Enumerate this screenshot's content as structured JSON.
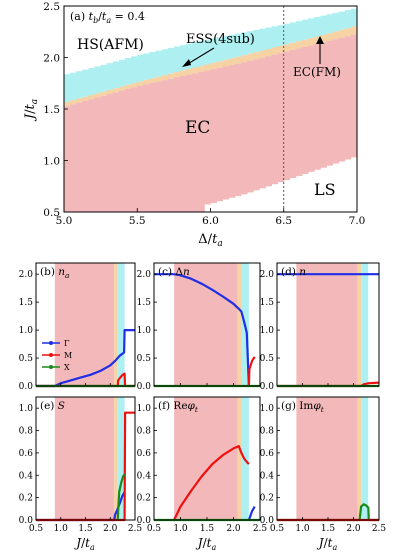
{
  "chart_data": [
    {
      "type": "heatmap",
      "panel": "(a)",
      "title": "(a) t_b/t_a = 0.4",
      "xlabel": "Δ/t_a",
      "ylabel": "J/t_a",
      "xlim": [
        5.0,
        7.0
      ],
      "ylim": [
        0.5,
        2.5
      ],
      "xticks": [
        "5.0",
        "5.5",
        "6.0",
        "6.5",
        "7.0"
      ],
      "yticks": [
        "0.5",
        "1.0",
        "1.5",
        "2.0",
        "2.5"
      ],
      "dashed_vline_x": 6.5,
      "regions": [
        {
          "name": "HS(AFM)",
          "color": "#ffffff"
        },
        {
          "name": "ESS(4sub)",
          "color": "#aef0f2"
        },
        {
          "name": "EC(FM)",
          "color": "#f6d2a4"
        },
        {
          "name": "EC",
          "color": "#f2b8ba"
        },
        {
          "name": "LS",
          "color": "#ffffff"
        }
      ],
      "boundaries": {
        "x": [
          5.0,
          5.25,
          5.5,
          5.75,
          6.0,
          6.25,
          6.5,
          6.75,
          7.0
        ],
        "hs_ess": [
          1.83,
          1.92,
          2.02,
          2.1,
          2.18,
          2.25,
          2.32,
          2.4,
          2.48
        ],
        "ess_ecfm": [
          1.56,
          1.66,
          1.76,
          1.85,
          1.94,
          2.03,
          2.12,
          2.21,
          2.31
        ],
        "ecfm_ec": [
          1.52,
          1.62,
          1.72,
          1.8,
          1.88,
          1.96,
          2.05,
          2.14,
          2.23
        ],
        "ec_ls": [
          0.5,
          0.5,
          0.5,
          0.5,
          0.58,
          0.68,
          0.8,
          0.92,
          1.04
        ]
      },
      "ls_start_x": 5.95,
      "labels": {
        "hs": "HS(AFM)",
        "ess": "ESS(4sub)",
        "ecfm": "EC(FM)",
        "ec": "EC",
        "ls": "LS"
      }
    },
    {
      "type": "line",
      "panels_shared": {
        "xlabel": "J/t_a",
        "xlim": [
          0.5,
          2.5
        ],
        "xticks": [
          "0.5",
          "1.0",
          "1.5",
          "2.0",
          "2.5"
        ],
        "bands": [
          {
            "from": 0.88,
            "to": 2.08,
            "color": "#f2b8ba"
          },
          {
            "from": 2.08,
            "to": 2.15,
            "color": "#f6d2a4"
          },
          {
            "from": 2.15,
            "to": 2.29,
            "color": "#aef0f2"
          }
        ],
        "legend": [
          "Γ",
          "M",
          "X"
        ],
        "series_colors": {
          "Γ": "#1f2ee6",
          "M": "#ee1111",
          "X": "#1a8a1a"
        }
      },
      "panels": [
        {
          "id": "b",
          "label": "(b) n_a",
          "ylim": [
            0,
            2.2
          ],
          "yticks": [
            "0.0",
            "0.5",
            "1.0",
            "1.5",
            "2.0"
          ],
          "series": [
            {
              "name": "Γ",
              "x": [
                0.5,
                0.88,
                1.0,
                1.2,
                1.4,
                1.6,
                1.8,
                2.0,
                2.1,
                2.15,
                2.2,
                2.28,
                2.29,
                2.5
              ],
              "y": [
                0.0,
                0.0,
                0.05,
                0.1,
                0.15,
                0.2,
                0.27,
                0.37,
                0.45,
                0.5,
                0.55,
                0.6,
                1.0,
                1.0
              ]
            },
            {
              "name": "M",
              "x": [
                0.5,
                2.15,
                2.16,
                2.2,
                2.25,
                2.29,
                2.3,
                2.5
              ],
              "y": [
                0.0,
                0.0,
                0.1,
                0.15,
                0.2,
                0.22,
                0.0,
                0.0
              ]
            },
            {
              "name": "X",
              "x": [
                0.5,
                2.5
              ],
              "y": [
                0.0,
                0.0
              ]
            }
          ]
        },
        {
          "id": "c",
          "label": "(c) Δn",
          "ylim": [
            0,
            2.2
          ],
          "yticks": [
            "0.0",
            "0.5",
            "1.0",
            "1.5",
            "2.0"
          ],
          "series": [
            {
              "name": "Γ",
              "x": [
                0.5,
                0.88,
                1.0,
                1.2,
                1.4,
                1.6,
                1.8,
                2.0,
                2.1,
                2.15,
                2.2,
                2.25,
                2.29
              ],
              "y": [
                2.0,
                2.0,
                1.98,
                1.92,
                1.83,
                1.72,
                1.6,
                1.47,
                1.38,
                1.33,
                1.15,
                0.95,
                0.0
              ]
            },
            {
              "name": "M",
              "x": [
                2.29,
                2.3,
                2.35,
                2.4
              ],
              "y": [
                0.0,
                0.3,
                0.45,
                0.52
              ]
            },
            {
              "name": "X",
              "x": [
                0.5,
                2.5
              ],
              "y": [
                0.0,
                0.0
              ]
            }
          ]
        },
        {
          "id": "d",
          "label": "(d) n",
          "ylim": [
            0,
            2.2
          ],
          "yticks": [
            "0.0",
            "0.5",
            "1.0",
            "1.5",
            "2.0"
          ],
          "series": [
            {
              "name": "Γ",
              "x": [
                0.5,
                2.5
              ],
              "y": [
                2.0,
                2.0
              ]
            },
            {
              "name": "M",
              "x": [
                0.5,
                2.15,
                2.2,
                2.3,
                2.5
              ],
              "y": [
                0.0,
                0.0,
                0.03,
                0.05,
                0.06
              ]
            },
            {
              "name": "X",
              "x": [
                0.5,
                2.5
              ],
              "y": [
                0.0,
                0.0
              ]
            }
          ]
        },
        {
          "id": "e",
          "label": "(e) S",
          "ylim": [
            0,
            1.1
          ],
          "yticks": [
            "0.0",
            "0.2",
            "0.4",
            "0.6",
            "0.8",
            "1.0"
          ],
          "series": [
            {
              "name": "Γ",
              "x": [
                0.5,
                2.08,
                2.1,
                2.15,
                2.2,
                2.25,
                2.29
              ],
              "y": [
                0.0,
                0.0,
                0.05,
                0.1,
                0.16,
                0.22,
                0.25
              ]
            },
            {
              "name": "M",
              "x": [
                0.5,
                2.29,
                2.3,
                2.5
              ],
              "y": [
                0.0,
                0.0,
                0.96,
                0.96
              ]
            },
            {
              "name": "X",
              "x": [
                2.15,
                2.18,
                2.22,
                2.26,
                2.29
              ],
              "y": [
                0.0,
                0.25,
                0.33,
                0.39,
                0.41
              ]
            }
          ]
        },
        {
          "id": "f",
          "label": "(f) Reφ_t",
          "ylim": [
            0,
            1.1
          ],
          "yticks": [
            "0.0",
            "0.2",
            "0.4",
            "0.6",
            "0.8",
            "1.0"
          ],
          "series": [
            {
              "name": "M",
              "x": [
                0.88,
                1.0,
                1.2,
                1.4,
                1.6,
                1.8,
                2.0,
                2.1,
                2.15,
                2.2,
                2.25,
                2.29
              ],
              "y": [
                0.0,
                0.12,
                0.26,
                0.39,
                0.5,
                0.58,
                0.64,
                0.66,
                0.6,
                0.55,
                0.52,
                0.5
              ]
            },
            {
              "name": "Γ",
              "x": [
                2.29,
                2.35,
                2.4
              ],
              "y": [
                0.0,
                0.08,
                0.12
              ]
            },
            {
              "name": "X",
              "x": [
                0.5,
                2.5
              ],
              "y": [
                0.0,
                0.0
              ]
            }
          ]
        },
        {
          "id": "g",
          "label": "(g) Imφ_t",
          "ylim": [
            0,
            1.1
          ],
          "yticks": [
            "0.0",
            "0.2",
            "0.4",
            "0.6",
            "0.8",
            "1.0"
          ],
          "series": [
            {
              "name": "X",
              "x": [
                0.5,
                2.12,
                2.15,
                2.2,
                2.25,
                2.29,
                2.3,
                2.5
              ],
              "y": [
                0.0,
                0.0,
                0.12,
                0.14,
                0.13,
                0.11,
                0.0,
                0.0
              ]
            },
            {
              "name": "M",
              "x": [
                0.5,
                2.5
              ],
              "y": [
                0.0,
                0.0
              ]
            }
          ]
        }
      ]
    }
  ]
}
